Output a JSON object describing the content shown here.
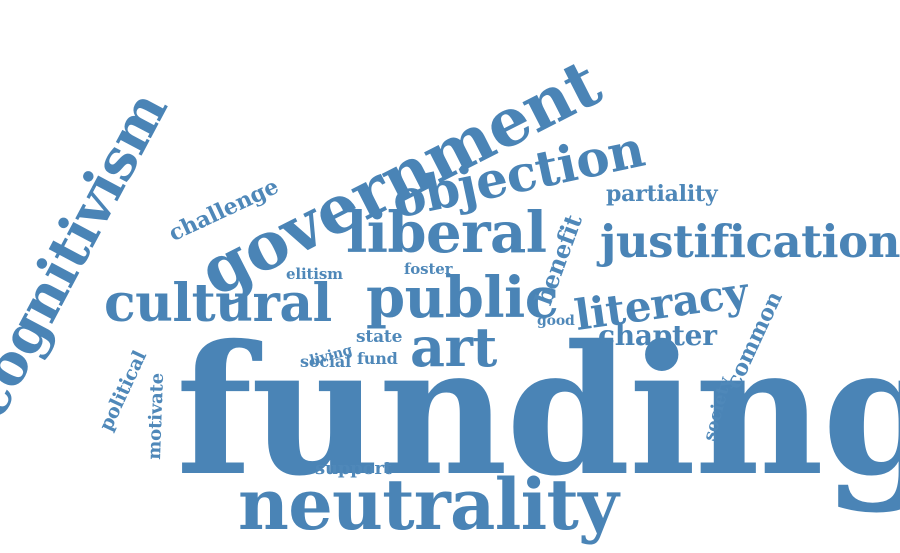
{
  "colors": {
    "word": "#4a84b6",
    "word_alt": "#4f88b9"
  },
  "words": {
    "funding": "funding",
    "neutrality": "neutrality",
    "government": "government",
    "cognitivism": "cognitivism",
    "objection": "objection",
    "liberal": "liberal",
    "justification": "justification",
    "cultural": "cultural",
    "public": "public",
    "literacy": "literacy",
    "art": "art",
    "chapter": "chapter",
    "partiality": "partiality",
    "benefit": "benefit",
    "challenge": "challenge",
    "elitism": "elitism",
    "foster": "foster",
    "common": "common",
    "society": "society",
    "good": "good",
    "living": "living",
    "state": "state",
    "social": "social",
    "fund": "fund",
    "political": "political",
    "motivate": "motivate",
    "support": "support"
  }
}
